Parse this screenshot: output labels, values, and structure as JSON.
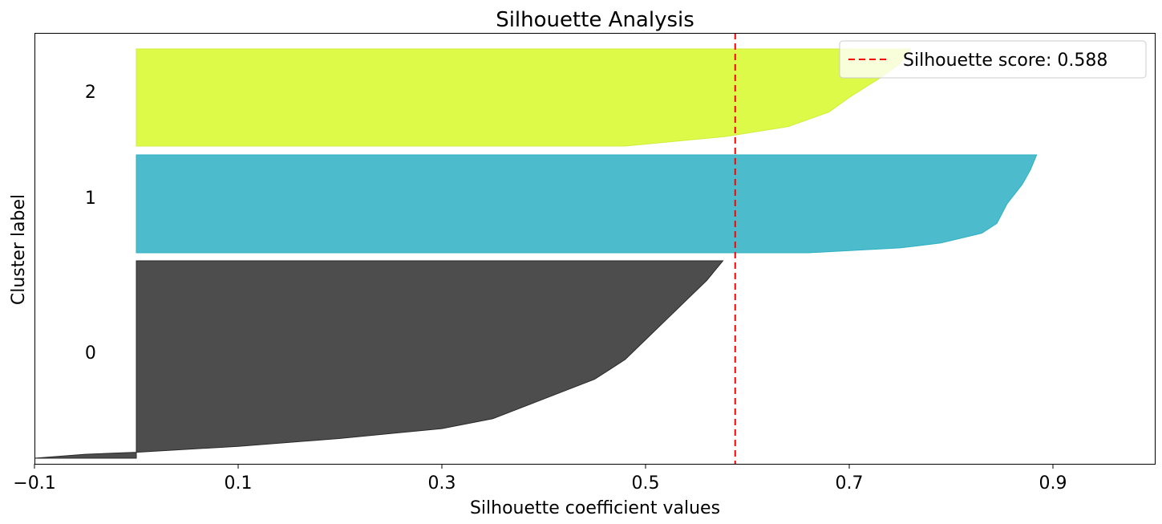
{
  "chart_data": {
    "type": "area",
    "title": "Silhouette Analysis",
    "xlabel": "Silhouette coefficient values",
    "ylabel": "Cluster label",
    "xlim": [
      -0.1,
      1.0
    ],
    "xticks": [
      -0.1,
      0.1,
      0.3,
      0.5,
      0.7,
      0.9
    ],
    "xtick_labels": [
      "−0.1",
      "0.1",
      "0.3",
      "0.5",
      "0.7",
      "0.9"
    ],
    "yticks_visible": false,
    "grid": false,
    "silhouette_score": 0.588,
    "legend": {
      "label": "Silhouette score: 0.588",
      "placement": "upper-right",
      "line_style": "dashed",
      "color": "#ff0000"
    },
    "clusters": [
      {
        "label": "0",
        "color": "#4d4d4d",
        "edge_color": "#2a2a2a",
        "profile": [
          [
            0.0,
            -0.1
          ],
          [
            0.02,
            -0.05
          ],
          [
            0.03,
            0.0
          ],
          [
            0.06,
            0.1
          ],
          [
            0.1,
            0.2
          ],
          [
            0.15,
            0.3
          ],
          [
            0.2,
            0.35
          ],
          [
            0.3,
            0.4
          ],
          [
            0.4,
            0.45
          ],
          [
            0.5,
            0.48
          ],
          [
            0.6,
            0.5
          ],
          [
            0.7,
            0.52
          ],
          [
            0.8,
            0.54
          ],
          [
            0.9,
            0.56
          ],
          [
            1.0,
            0.576
          ]
        ]
      },
      {
        "label": "1",
        "color": "#4cbccd",
        "edge_color": "#2eb0c2",
        "profile": [
          [
            0.0,
            0.66
          ],
          [
            0.05,
            0.75
          ],
          [
            0.1,
            0.79
          ],
          [
            0.2,
            0.83
          ],
          [
            0.3,
            0.845
          ],
          [
            0.5,
            0.855
          ],
          [
            0.7,
            0.87
          ],
          [
            0.85,
            0.878
          ],
          [
            1.0,
            0.884
          ]
        ]
      },
      {
        "label": "2",
        "color": "#dcfa47",
        "edge_color": "#cfee3a",
        "profile": [
          [
            0.0,
            0.48
          ],
          [
            0.1,
            0.58
          ],
          [
            0.2,
            0.64
          ],
          [
            0.35,
            0.68
          ],
          [
            0.5,
            0.7
          ],
          [
            0.7,
            0.73
          ],
          [
            0.85,
            0.75
          ],
          [
            1.0,
            0.76
          ]
        ]
      }
    ]
  }
}
